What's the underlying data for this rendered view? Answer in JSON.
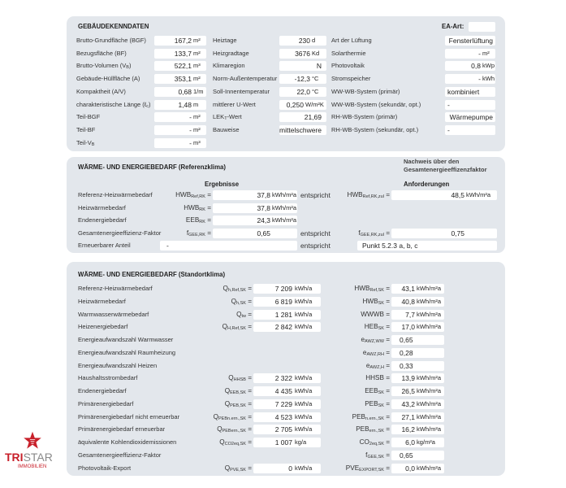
{
  "building": {
    "heading": "GEBÄUDEKENNDATEN",
    "ea_label": "EA-Art:",
    "ea_value": "",
    "col1": [
      {
        "label": "Brutto-Grundfläche (BGF)",
        "value": "167,2",
        "unit": "m²"
      },
      {
        "label": "Bezugsfläche (BF)",
        "value": "133,7",
        "unit": "m²"
      },
      {
        "label": "Brutto-Volumen (V",
        "label_sub": "B",
        "label_end": ")",
        "value": "522,1",
        "unit": "m³"
      },
      {
        "label": "Gebäude-Hüllfläche (A)",
        "value": "353,1",
        "unit": "m²"
      },
      {
        "label": "Kompaktheit (A/V)",
        "value": "0,68",
        "unit": "1/m"
      },
      {
        "label": "charakteristische Länge (ℓ",
        "label_sub": "c",
        "label_end": ")",
        "value": "1,48",
        "unit": "m"
      },
      {
        "label": "Teil-BGF",
        "value": "-",
        "unit": "m²"
      },
      {
        "label": "Teil-BF",
        "value": "-",
        "unit": "m²"
      },
      {
        "label": "Teil-V",
        "label_sub": "B",
        "value": "-",
        "unit": "m³"
      }
    ],
    "col2": [
      {
        "label": "Heiztage",
        "value": "230",
        "unit": "d"
      },
      {
        "label": "Heizgradtage",
        "value": "3676",
        "unit": "Kd"
      },
      {
        "label": "Klimaregion",
        "value": "N",
        "unit": ""
      },
      {
        "label": "Norm-Außentemperatur",
        "value": "-12,3",
        "unit": "°C"
      },
      {
        "label": "Soll-Innentemperatur",
        "value": "22,0",
        "unit": "°C"
      },
      {
        "label": "mittlerer U-Wert",
        "value": "0,250",
        "unit": "W/m²K"
      },
      {
        "label": "LEK",
        "label_sub": "T",
        "label_end": "-Wert",
        "value": "21,69",
        "unit": ""
      },
      {
        "label": "Bauweise",
        "value": "mittelschwere",
        "unit": ""
      }
    ],
    "col3": [
      {
        "label": "Art der Lüftung",
        "text": "Fensterlüftung",
        "align": "right"
      },
      {
        "label": "Solarthermie",
        "value": "-",
        "unit": "m²"
      },
      {
        "label": "Photovoltaik",
        "value": "0,8",
        "unit": "kWp"
      },
      {
        "label": "Stromspeicher",
        "value": "-",
        "unit": "kWh"
      },
      {
        "label": "WW-WB-System (primär)",
        "text": "kombiniert"
      },
      {
        "label": "WW-WB-System (sekundär, opt.)",
        "text": "-"
      },
      {
        "label": "RH-WB-System (primär)",
        "text": "Wärmepumpe",
        "align": "right"
      },
      {
        "label": "RH-WB-System (sekundär, opt.)",
        "text": "-"
      }
    ]
  },
  "reference": {
    "heading": "WÄRME- UND ENERGIEBEDARF (Referenzklima)",
    "nachweis_line1": "Nachweis über den",
    "nachweis_line2": "Gesamtenergieeffizenzfaktor",
    "results_label": "Ergebnisse",
    "requirements_label": "Anforderungen",
    "entspricht": "entspricht",
    "rows": [
      {
        "label": "Referenz-Heizwärmebedarf",
        "sym": "HWB",
        "sub": "Ref,RK",
        "value": "37,8",
        "unit": "kWh/m²a",
        "ent": true,
        "rsym": "HWB",
        "rsub": "Ref,RK,zul",
        "rvalue": "48,5",
        "runit": "kWh/m²a"
      },
      {
        "label": "Heizwärmebedarf",
        "sym": "HWB",
        "sub": "RK",
        "value": "37,8",
        "unit": "kWh/m²a"
      },
      {
        "label": "Endenergiebedarf",
        "sym": "EEB",
        "sub": "RK",
        "value": "24,3",
        "unit": "kWh/m²a"
      },
      {
        "label": "Gesamtenergieeffizienz-Faktor",
        "sym": "f",
        "sub": "GEE,RK",
        "value": "0,65",
        "unit": "",
        "ent": true,
        "rsym": "f",
        "rsub": "GEE,RK,zul",
        "rvalue": "0,75",
        "runit": ""
      }
    ],
    "renewable": {
      "label": "Erneuerbarer Anteil",
      "value": "-",
      "requirement": "Punkt 5.2.3 a, b, c"
    }
  },
  "site": {
    "heading": "WÄRME- UND ENERGIEBEDARF (Standortklima)",
    "rows": [
      {
        "label": "Referenz-Heizwärmebedarf",
        "sym": "Q",
        "sub": "h,Ref,SK",
        "value": "7 209",
        "unit": "kWh/a",
        "rsym": "HWB",
        "rsub": "Ref,SK",
        "rvalue": "43,1",
        "runit": "kWh/m²a"
      },
      {
        "label": "Heizwärmebedarf",
        "sym": "Q",
        "sub": "h,SK",
        "value": "6 819",
        "unit": "kWh/a",
        "rsym": "HWB",
        "rsub": "SK",
        "rvalue": "40,8",
        "runit": "kWh/m²a"
      },
      {
        "label": "Warmwasserwärmebedarf",
        "sym": "Q",
        "sub": "tw",
        "value": "1 281",
        "unit": "kWh/a",
        "rsym": "WWWB",
        "rsub": "",
        "rvalue": "7,7",
        "runit": "kWh/m²a"
      },
      {
        "label": "Heizenergiebedarf",
        "sym": "Q",
        "sub": "H,Ref,SK",
        "value": "2 842",
        "unit": "kWh/a",
        "rsym": "HEB",
        "rsub": "SK",
        "rvalue": "17,0",
        "runit": "kWh/m²a"
      },
      {
        "label": "Energieaufwandszahl Warmwasser",
        "rsym": "e",
        "rsub": "AWZ,WW",
        "rtext": "0,65"
      },
      {
        "label": "Energieaufwandszahl Raumheizung",
        "rsym": "e",
        "rsub": "AWZ,RH",
        "rtext": "0,28"
      },
      {
        "label": "Energieaufwandszahl Heizen",
        "rsym": "e",
        "rsub": "AWZ,H",
        "rtext": "0,33"
      },
      {
        "label": "Haushaltsstrombedarf",
        "sym": "Q",
        "sub": "HHSB",
        "value": "2 322",
        "unit": "kWh/a",
        "rsym": "HHSB",
        "rsub": "",
        "rvalue": "13,9",
        "runit": "kWh/m²a"
      },
      {
        "label": "Endenergiebedarf",
        "sym": "Q",
        "sub": "EEB,SK",
        "value": "4 435",
        "unit": "kWh/a",
        "rsym": "EEB",
        "rsub": "SK",
        "rvalue": "26,5",
        "runit": "kWh/m²a"
      },
      {
        "label": "Primärenergiebedarf",
        "sym": "Q",
        "sub": "PEB,SK",
        "value": "7 229",
        "unit": "kWh/a",
        "rsym": "PEB",
        "rsub": "SK",
        "rvalue": "43,2",
        "runit": "kWh/m²a"
      },
      {
        "label": "Primärenergiebedarf nicht erneuerbar",
        "sym": "Q",
        "sub": "PEBn.ern.,SK",
        "value": "4 523",
        "unit": "kWh/a",
        "rsym": "PEB",
        "rsub": "n.ern.,SK",
        "rvalue": "27,1",
        "runit": "kWh/m²a"
      },
      {
        "label": "Primärenergiebedarf erneuerbar",
        "sym": "Q",
        "sub": "PEBern.,SK",
        "value": "2 705",
        "unit": "kWh/a",
        "rsym": "PEB",
        "rsub": "ern.,SK",
        "rvalue": "16,2",
        "runit": "kWh/m²a"
      },
      {
        "label": "äquivalente Kohlendioxidemissionen",
        "sym": "Q",
        "sub": "CO2eq,SK",
        "value": "1 007",
        "unit": "kg/a",
        "rsym": "CO",
        "rsub": "2eq,SK",
        "rvalue": "6,0",
        "runit": "kg/m²a"
      },
      {
        "label": "Gesamtenergieeffizienz-Faktor",
        "rsym": "f",
        "rsub": "GEE,SK",
        "rtext": "0,65"
      },
      {
        "label": "Photovoltaik-Export",
        "sym": "Q",
        "sub": "PVE,SK",
        "value": "0",
        "unit": "kWh/a",
        "rsym": "PVE",
        "rsub": "EXPORT,SK",
        "rvalue": "0,0",
        "runit": "kWh/m²a"
      }
    ]
  },
  "logo": {
    "name": "TRISTAR",
    "tagline": "IMMOBILIEN",
    "red": "#c8202a",
    "gray": "#8a8a8a"
  }
}
